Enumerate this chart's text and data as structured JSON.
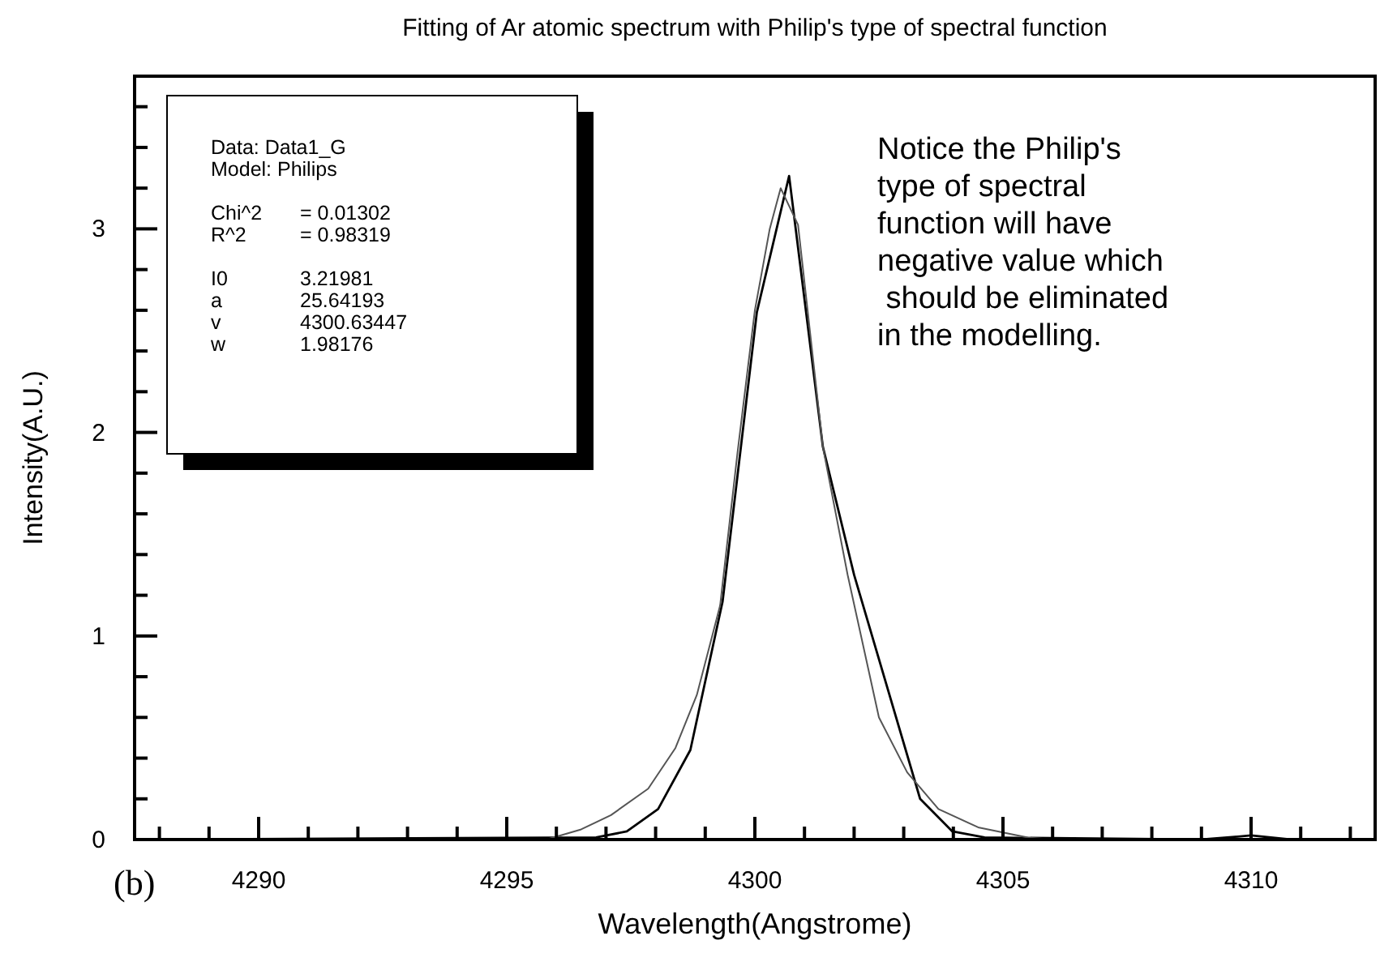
{
  "chart_data": {
    "type": "line",
    "title": "Fitting of Ar atomic spectrum with Philip's type of spectral function",
    "xlabel": "Wavelength(Angstrome)",
    "ylabel": "Intensity(A.U.)",
    "xlim": [
      4287.5,
      4312.5
    ],
    "ylim": [
      0,
      3.75
    ],
    "xticks": [
      {
        "value": 4288,
        "label": null
      },
      {
        "value": 4289,
        "label": null
      },
      4290,
      {
        "value": 4291,
        "label": null
      },
      {
        "value": 4292,
        "label": null
      },
      {
        "value": 4293,
        "label": null
      },
      {
        "value": 4294,
        "label": null
      },
      4295,
      {
        "value": 4296,
        "label": null
      },
      {
        "value": 4297,
        "label": null
      },
      {
        "value": 4298,
        "label": null
      },
      {
        "value": 4299,
        "label": null
      },
      4300,
      {
        "value": 4301,
        "label": null
      },
      {
        "value": 4302,
        "label": null
      },
      {
        "value": 4303,
        "label": null
      },
      {
        "value": 4304,
        "label": null
      },
      4305,
      {
        "value": 4306,
        "label": null
      },
      {
        "value": 4307,
        "label": null
      },
      {
        "value": 4308,
        "label": null
      },
      {
        "value": 4309,
        "label": null
      },
      4310,
      {
        "value": 4311,
        "label": null
      },
      {
        "value": 4312,
        "label": null
      }
    ],
    "yticks": [
      0,
      {
        "value": 0.2,
        "label": null
      },
      {
        "value": 0.4,
        "label": null
      },
      {
        "value": 0.6,
        "label": null
      },
      {
        "value": 0.8,
        "label": null
      },
      1,
      {
        "value": 1.2,
        "label": null
      },
      {
        "value": 1.4,
        "label": null
      },
      {
        "value": 1.6,
        "label": null
      },
      {
        "value": 1.8,
        "label": null
      },
      2,
      {
        "value": 2.2,
        "label": null
      },
      {
        "value": 2.4,
        "label": null
      },
      {
        "value": 2.6,
        "label": null
      },
      {
        "value": 2.8,
        "label": null
      },
      3,
      {
        "value": 3.2,
        "label": null
      },
      {
        "value": 3.4,
        "label": null
      },
      {
        "value": 3.6,
        "label": null
      }
    ],
    "grid": false,
    "marker": "none",
    "line_style": "solid",
    "series": [
      {
        "color": "#000000",
        "x": [
          4287.5,
          4296.8,
          4297.42,
          4298.05,
          4298.7,
          4299.35,
          4300.04,
          4300.69,
          4301.37,
          4302.0,
          4303.33,
          4303.98,
          4304.63,
          4309.0,
          4310.0,
          4310.8,
          4312.5
        ],
        "values": [
          0,
          0.01,
          0.04,
          0.15,
          0.44,
          1.17,
          2.59,
          3.26,
          1.93,
          1.3,
          0.2,
          0.04,
          0.01,
          0,
          0.02,
          0,
          0
        ]
      },
      {
        "color": "#555555",
        "x": [
          4287.5,
          4295.8,
          4296.5,
          4297.1,
          4297.85,
          4298.4,
          4298.83,
          4299.3,
          4299.65,
          4300.0,
          4300.3,
          4300.52,
          4300.87,
          4301.37,
          4301.87,
          4302.5,
          4303.07,
          4303.7,
          4304.5,
          4305.5,
          4306.0,
          4312.5
        ],
        "values": [
          0,
          0,
          0.05,
          0.12,
          0.25,
          0.45,
          0.71,
          1.15,
          1.9,
          2.6,
          3.0,
          3.2,
          3.02,
          1.93,
          1.3,
          0.6,
          0.33,
          0.15,
          0.06,
          0.01,
          0,
          0
        ]
      }
    ],
    "annotations": [
      "Data: Data1_G\nModel: Philips\n\nChi^2\t= 0.01302\nR^2\t= 0.98319\n\nI0\t3.21981\na\t25.64193\nv\t4300.63447\nw\t1.98176",
      "Notice the Philip's\ntype of spectral\nfunction will have\nnegative value which\n should be eliminated\nin the modelling.",
      "(b)"
    ]
  }
}
